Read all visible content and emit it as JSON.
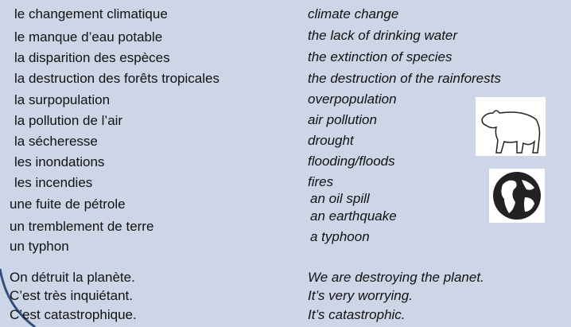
{
  "vocabulary": [
    {
      "fr": "le changement climatique",
      "en": "climate change"
    },
    {
      "fr": "le manque d’eau potable",
      "en": "the lack of drinking water"
    },
    {
      "fr": "la disparition des espèces",
      "en": "the extinction of species"
    },
    {
      "fr": "la destruction des forêts tropicales",
      "en": "the destruction of the rainforests"
    },
    {
      "fr": "la surpopulation",
      "en": "overpopulation"
    },
    {
      "fr": "la pollution de l’air",
      "en": "air pollution"
    },
    {
      "fr": "la sécheresse",
      "en": "drought"
    },
    {
      "fr": "les inondations",
      "en": "flooding/floods"
    },
    {
      "fr": "les incendies",
      "en": "fires"
    },
    {
      "fr": "une fuite de pétrole",
      "en": "an oil spill"
    },
    {
      "fr": "un tremblement de terre",
      "en": "an earthquake"
    },
    {
      "fr": "un typhon",
      "en": "a typhoon"
    }
  ],
  "phrases": [
    {
      "fr": "On détruit la planète.",
      "en": "We are destroying the planet."
    },
    {
      "fr": "C’est très inquiétant.",
      "en": "It’s very worrying."
    },
    {
      "fr": "C’est catastrophique.",
      "en": "It’s catastrophic."
    }
  ]
}
